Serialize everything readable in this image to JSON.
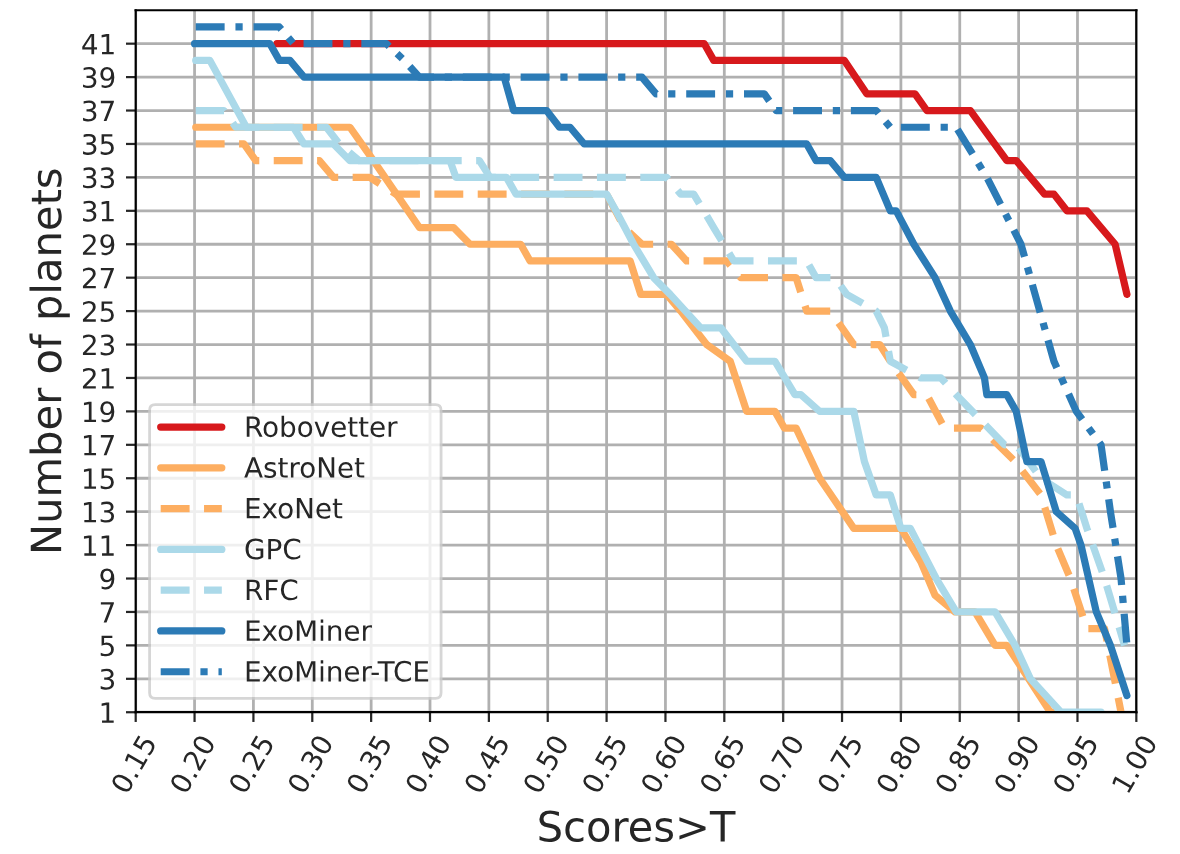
{
  "chart_data": {
    "type": "line",
    "xlabel": "Scores>T",
    "ylabel": "Number of planets",
    "xlim": [
      0.15,
      1.0
    ],
    "ylim": [
      1,
      43
    ],
    "xticks": [
      0.15,
      {
        "value": 0.2,
        "label": "0.20"
      },
      0.25,
      {
        "value": 0.3,
        "label": "0.30"
      },
      0.35,
      {
        "value": 0.4,
        "label": "0.40"
      },
      0.45,
      {
        "value": 0.5,
        "label": "0.50"
      },
      0.55,
      {
        "value": 0.6,
        "label": "0.60"
      },
      0.65,
      {
        "value": 0.7,
        "label": "0.70"
      },
      0.75,
      {
        "value": 0.8,
        "label": "0.80"
      },
      0.85,
      {
        "value": 0.9,
        "label": "0.90"
      },
      0.95,
      {
        "value": 1.0,
        "label": "1.00"
      }
    ],
    "yticks": [
      1,
      3,
      5,
      7,
      9,
      11,
      13,
      15,
      17,
      19,
      21,
      23,
      25,
      27,
      29,
      31,
      33,
      35,
      37,
      39,
      41
    ],
    "grid": true,
    "legend": "bottom left",
    "marker": "none",
    "series": [
      {
        "name": "Robovetter",
        "color": "#d7191c",
        "line_style": "solid",
        "x": [
          0.27,
          0.633,
          0.641,
          0.752,
          0.771,
          0.812,
          0.822,
          0.859,
          0.89,
          0.898,
          0.922,
          0.93,
          0.941,
          0.958,
          0.982,
          0.992
        ],
        "values": [
          41,
          41,
          40,
          40,
          38,
          38,
          37,
          37,
          34,
          34,
          32,
          32,
          31,
          31,
          29,
          26
        ]
      },
      {
        "name": "AstroNet",
        "color": "#fdae61",
        "line_style": "solid",
        "x": [
          0.201,
          0.332,
          0.352,
          0.391,
          0.42,
          0.434,
          0.477,
          0.485,
          0.57,
          0.579,
          0.601,
          0.613,
          0.635,
          0.655,
          0.669,
          0.693,
          0.701,
          0.711,
          0.731,
          0.76,
          0.8,
          0.817,
          0.829,
          0.846,
          0.863,
          0.88,
          0.89,
          0.927,
          0.935
        ],
        "values": [
          36,
          36,
          34,
          30,
          30,
          29,
          29,
          28,
          28,
          26,
          26,
          25,
          23,
          22,
          19,
          19,
          18,
          18,
          15,
          12,
          12,
          10,
          8,
          7,
          7,
          5,
          5,
          1,
          1
        ]
      },
      {
        "name": "ExoNet",
        "color": "#fdae61",
        "line_style": "dashed",
        "x": [
          0.201,
          0.242,
          0.252,
          0.306,
          0.318,
          0.349,
          0.371,
          0.55,
          0.565,
          0.58,
          0.605,
          0.618,
          0.652,
          0.664,
          0.711,
          0.72,
          0.74,
          0.76,
          0.782,
          0.791,
          0.811,
          0.822,
          0.837,
          0.868,
          0.897,
          0.919,
          0.932,
          0.944,
          0.958,
          0.973,
          0.987
        ],
        "values": [
          35,
          35,
          34,
          34,
          33,
          33,
          32,
          32,
          30,
          29,
          29,
          28,
          28,
          27,
          27,
          25,
          25,
          23,
          23,
          22,
          20,
          20,
          18,
          18,
          16,
          14,
          11,
          9,
          6,
          6,
          1
        ]
      },
      {
        "name": "GPC",
        "color": "#abd9e9",
        "line_style": "solid",
        "x": [
          0.201,
          0.213,
          0.244,
          0.284,
          0.293,
          0.318,
          0.332,
          0.417,
          0.422,
          0.465,
          0.473,
          0.55,
          0.558,
          0.573,
          0.59,
          0.604,
          0.63,
          0.647,
          0.669,
          0.693,
          0.71,
          0.715,
          0.731,
          0.76,
          0.769,
          0.779,
          0.791,
          0.8,
          0.808,
          0.83,
          0.847,
          0.88,
          0.897,
          0.91,
          0.936,
          0.97
        ],
        "values": [
          40,
          40,
          36,
          36,
          35,
          35,
          34,
          34,
          33,
          33,
          32,
          32,
          31,
          29,
          27,
          26,
          24,
          24,
          22,
          22,
          20,
          20,
          19,
          19,
          16,
          14,
          14,
          12,
          12,
          9,
          7,
          7,
          5,
          3,
          1,
          1
        ]
      },
      {
        "name": "RFC",
        "color": "#abd9e9",
        "line_style": "dashed",
        "x": [
          0.201,
          0.225,
          0.235,
          0.312,
          0.323,
          0.34,
          0.442,
          0.451,
          0.601,
          0.613,
          0.624,
          0.641,
          0.658,
          0.72,
          0.728,
          0.744,
          0.754,
          0.779,
          0.786,
          0.791,
          0.817,
          0.834,
          0.847,
          0.888,
          0.898,
          0.919,
          0.941,
          0.949,
          0.958,
          0.973,
          0.99
        ],
        "values": [
          37,
          37,
          36,
          36,
          35,
          34,
          34,
          33,
          33,
          32,
          32,
          30,
          28,
          28,
          27,
          27,
          26,
          25,
          24,
          22,
          21,
          21,
          20,
          17,
          17,
          15,
          14,
          14,
          12,
          9,
          5
        ]
      },
      {
        "name": "ExoMiner",
        "color": "#2c7bb6",
        "line_style": "solid",
        "x": [
          0.2,
          0.264,
          0.272,
          0.281,
          0.293,
          0.463,
          0.471,
          0.499,
          0.51,
          0.519,
          0.531,
          0.72,
          0.728,
          0.74,
          0.752,
          0.779,
          0.791,
          0.796,
          0.811,
          0.829,
          0.842,
          0.859,
          0.871,
          0.873,
          0.89,
          0.898,
          0.907,
          0.919,
          0.932,
          0.948,
          0.953,
          0.966,
          0.978,
          0.992
        ],
        "values": [
          41,
          41,
          40,
          40,
          39,
          39,
          37,
          37,
          36,
          36,
          35,
          35,
          34,
          34,
          33,
          33,
          31,
          31,
          29,
          27,
          25,
          23,
          21,
          20,
          20,
          19,
          16,
          16,
          13,
          12,
          11,
          7,
          5,
          2
        ]
      },
      {
        "name": "ExoMiner-TCE",
        "color": "#2c7bb6",
        "line_style": "dashdot",
        "x": [
          0.201,
          0.272,
          0.284,
          0.363,
          0.378,
          0.391,
          0.58,
          0.592,
          0.684,
          0.694,
          0.779,
          0.791,
          0.847,
          0.873,
          0.902,
          0.914,
          0.93,
          0.949,
          0.97,
          0.978,
          0.987,
          0.992
        ],
        "values": [
          42,
          42,
          41,
          41,
          40,
          39,
          39,
          38,
          38,
          37,
          37,
          36,
          36,
          33,
          29,
          26,
          22,
          19,
          17,
          13,
          9,
          5
        ]
      }
    ]
  }
}
